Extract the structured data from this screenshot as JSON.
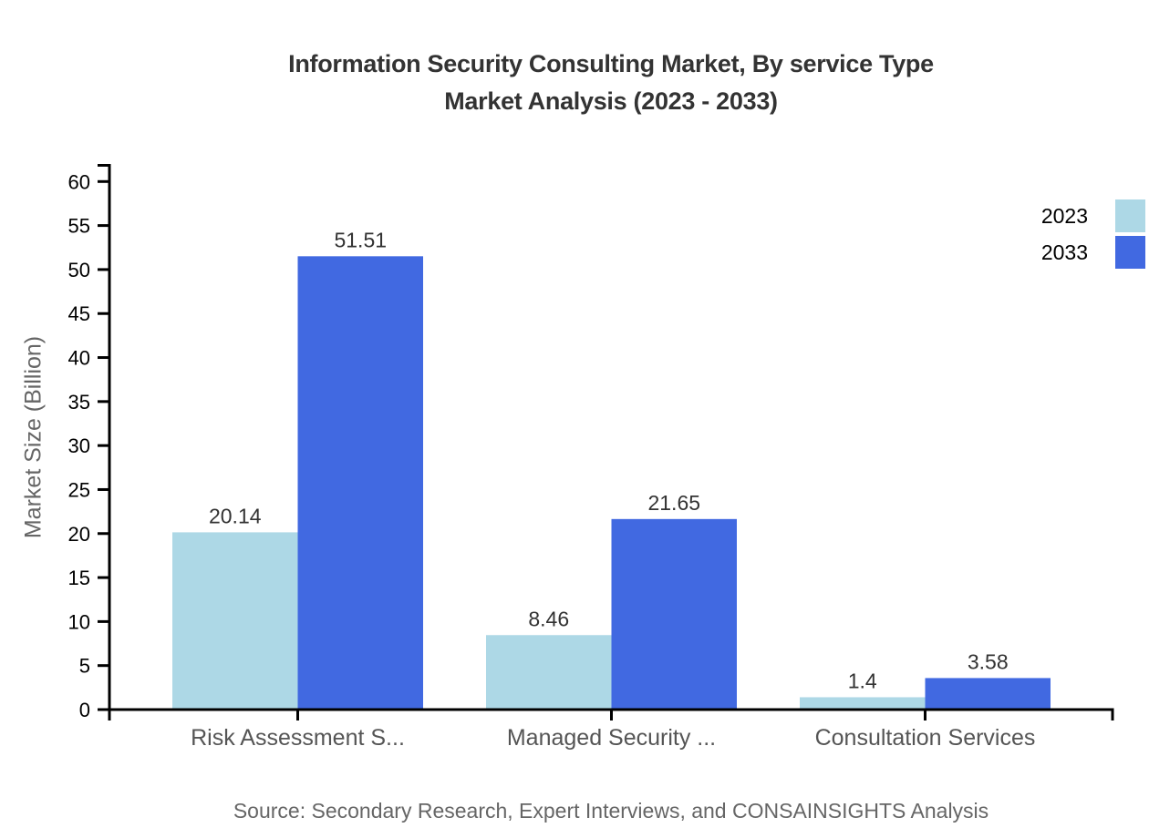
{
  "title": {
    "line1": "Information Security Consulting Market, By service Type",
    "line2": "Market Analysis (2023 - 2033)"
  },
  "y_axis_title": "Market Size (Billion)",
  "source": "Source: Secondary Research, Expert Interviews, and CONSAINSIGHTS Analysis",
  "legend": {
    "items": [
      {
        "label": "2023",
        "color": "#add8e6"
      },
      {
        "label": "2033",
        "color": "#4169e1"
      }
    ]
  },
  "chart_data": {
    "type": "bar",
    "title": "Information Security Consulting Market, By service Type Market Analysis (2023 - 2033)",
    "categories": [
      "Risk Assessment S...",
      "Managed Security ...",
      "Consultation Services"
    ],
    "series": [
      {
        "name": "2023",
        "color": "#add8e6",
        "values": [
          20.14,
          8.46,
          1.4
        ]
      },
      {
        "name": "2033",
        "color": "#4169e1",
        "values": [
          51.51,
          21.65,
          3.58
        ]
      }
    ],
    "xlabel": "",
    "ylabel": "Market Size (Billion)",
    "ylim": [
      0,
      60
    ],
    "ytick_step": 5,
    "yticks": [
      0,
      5,
      10,
      15,
      20,
      25,
      30,
      35,
      40,
      45,
      50,
      55,
      60
    ],
    "grid": false,
    "legend_position": "top-right",
    "value_labels": [
      "20.14",
      "8.46",
      "1.4",
      "51.51",
      "21.65",
      "3.58"
    ]
  },
  "colors": {
    "background": "#ffffff",
    "title_text": "#333333",
    "axis": "#000000",
    "tick_label": "#000000",
    "value_label": "#333333",
    "category_label": "#555555",
    "muted_text": "#666666",
    "series_2023": "#add8e6",
    "series_2033": "#4169e1"
  }
}
